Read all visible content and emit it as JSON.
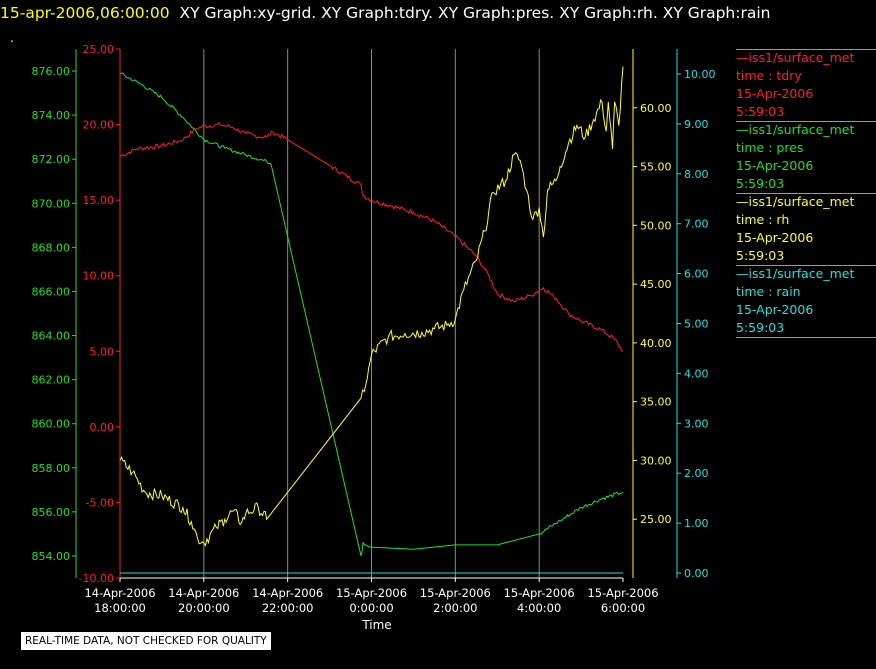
{
  "header": {
    "date": "15-apr-2006,06:00:00",
    "graphs": "XY Graph:xy-grid.  XY Graph:tdry.  XY Graph:pres.  XY Graph:rh.  XY Graph:rain"
  },
  "stray_mark": ".",
  "quality_note": "REAL-TIME DATA, NOT CHECKED FOR QUALITY",
  "legend": [
    {
      "name": "—iss1/surface_met",
      "var": "time : tdry",
      "date": "15-Apr-2006",
      "time": "5:59:03",
      "color": "#ff2020"
    },
    {
      "name": "—iss1/surface_met",
      "var": "time : pres",
      "date": "15-Apr-2006",
      "time": "5:59:03",
      "color": "#20e020"
    },
    {
      "name": "—iss1/surface_met",
      "var": "time : rh",
      "date": "15-Apr-2006",
      "time": "5:59:03",
      "color": "#ffff20"
    },
    {
      "name": "—iss1/surface_met",
      "var": "time : rain",
      "date": "15-Apr-2006",
      "time": "5:59:03",
      "color": "#20e0e0"
    }
  ],
  "chart_data": {
    "type": "line",
    "xlabel": "Time",
    "x_ticks": [
      {
        "label1": "14-Apr-2006",
        "label2": "18:00:00",
        "hour": 18
      },
      {
        "label1": "14-Apr-2006",
        "label2": "20:00:00",
        "hour": 20
      },
      {
        "label1": "14-Apr-2006",
        "label2": "22:00:00",
        "hour": 22
      },
      {
        "label1": "15-Apr-2006",
        "label2": "0:00:00",
        "hour": 24
      },
      {
        "label1": "15-Apr-2006",
        "label2": "2:00:00",
        "hour": 26
      },
      {
        "label1": "15-Apr-2006",
        "label2": "4:00:00",
        "hour": 28
      },
      {
        "label1": "15-Apr-2006",
        "label2": "6:00:00",
        "hour": 30
      }
    ],
    "x_range_hours": [
      18,
      30
    ],
    "vertical_grid": true,
    "axes": {
      "pres": {
        "color": "#20e020",
        "range": [
          853,
          877
        ],
        "ticks": [
          "854.00",
          "856.00",
          "858.00",
          "860.00",
          "862.00",
          "864.00",
          "866.00",
          "868.00",
          "870.00",
          "872.00",
          "874.00",
          "876.00"
        ]
      },
      "tdry": {
        "color": "#ff2020",
        "range": [
          -10,
          25
        ],
        "ticks": [
          "-10.00",
          "-5.00",
          "0.00",
          "5.00",
          "10.00",
          "15.00",
          "20.00",
          "25.00"
        ]
      },
      "rh": {
        "color": "#ffff20",
        "range": [
          20,
          65
        ],
        "ticks": [
          "25.00",
          "30.00",
          "35.00",
          "40.00",
          "45.00",
          "50.00",
          "55.00",
          "60.00"
        ]
      },
      "rain": {
        "color": "#20e0e0",
        "range": [
          -0.1,
          10.5
        ],
        "ticks": [
          "0.00",
          "1.00",
          "2.00",
          "3.00",
          "4.00",
          "5.00",
          "6.00",
          "7.00",
          "8.00",
          "9.00",
          "10.00"
        ]
      }
    },
    "series": [
      {
        "name": "tdry",
        "axis": "tdry",
        "color": "#ff2020",
        "noise": 0.15,
        "points": [
          [
            18.0,
            17.9
          ],
          [
            18.4,
            18.4
          ],
          [
            19.0,
            18.6
          ],
          [
            19.5,
            19.0
          ],
          [
            19.8,
            19.7
          ],
          [
            20.0,
            19.9
          ],
          [
            20.4,
            20.0
          ],
          [
            20.7,
            19.8
          ],
          [
            21.0,
            19.4
          ],
          [
            21.3,
            19.2
          ],
          [
            21.5,
            19.2
          ],
          [
            21.65,
            19.5
          ],
          [
            22.0,
            19.0
          ],
          [
            23.0,
            17.3
          ],
          [
            23.75,
            16.0
          ],
          [
            23.8,
            15.3
          ],
          [
            24.0,
            15.0
          ],
          [
            24.5,
            14.6
          ],
          [
            25.0,
            14.2
          ],
          [
            25.5,
            13.6
          ],
          [
            26.0,
            12.6
          ],
          [
            26.5,
            11.3
          ],
          [
            26.8,
            10.0
          ],
          [
            27.0,
            8.8
          ],
          [
            27.4,
            8.3
          ],
          [
            27.8,
            8.7
          ],
          [
            28.1,
            9.2
          ],
          [
            28.4,
            8.5
          ],
          [
            28.7,
            7.5
          ],
          [
            29.0,
            7.0
          ],
          [
            29.5,
            6.4
          ],
          [
            29.8,
            5.8
          ],
          [
            30.0,
            5.0
          ]
        ]
      },
      {
        "name": "pres",
        "axis": "pres",
        "color": "#20e020",
        "noise": 0.08,
        "points": [
          [
            18.0,
            875.9
          ],
          [
            18.5,
            875.4
          ],
          [
            19.0,
            874.8
          ],
          [
            19.5,
            873.9
          ],
          [
            20.0,
            872.9
          ],
          [
            20.5,
            872.5
          ],
          [
            21.0,
            872.2
          ],
          [
            21.5,
            871.9
          ],
          [
            21.6,
            871.8
          ],
          [
            23.75,
            854.0
          ],
          [
            23.8,
            854.6
          ],
          [
            24.0,
            854.4
          ],
          [
            25.0,
            854.3
          ],
          [
            26.0,
            854.5
          ],
          [
            27.0,
            854.5
          ],
          [
            28.0,
            855.0
          ],
          [
            28.5,
            855.6
          ],
          [
            29.0,
            856.2
          ],
          [
            29.5,
            856.6
          ],
          [
            30.0,
            856.9
          ]
        ]
      },
      {
        "name": "rh",
        "axis": "rh",
        "color": "#ffff20",
        "noise": 0.5,
        "points": [
          [
            18.0,
            30.0
          ],
          [
            18.3,
            29.0
          ],
          [
            18.6,
            27.3
          ],
          [
            19.0,
            27.0
          ],
          [
            19.5,
            26.0
          ],
          [
            19.7,
            24.8
          ],
          [
            19.85,
            23.4
          ],
          [
            20.0,
            23.0
          ],
          [
            20.3,
            24.3
          ],
          [
            20.5,
            25.0
          ],
          [
            20.7,
            25.7
          ],
          [
            20.9,
            24.7
          ],
          [
            21.0,
            25.5
          ],
          [
            21.3,
            26.0
          ],
          [
            21.5,
            25.0
          ],
          [
            23.75,
            35.3
          ],
          [
            23.9,
            37.0
          ],
          [
            24.0,
            39.0
          ],
          [
            24.4,
            40.5
          ],
          [
            24.8,
            40.8
          ],
          [
            25.2,
            40.9
          ],
          [
            25.5,
            41.2
          ],
          [
            25.8,
            41.5
          ],
          [
            26.0,
            42.0
          ],
          [
            26.2,
            44.5
          ],
          [
            26.5,
            47.0
          ],
          [
            26.7,
            49.5
          ],
          [
            26.9,
            52.8
          ],
          [
            27.2,
            53.8
          ],
          [
            27.4,
            56.0
          ],
          [
            27.55,
            55.5
          ],
          [
            27.7,
            53.0
          ],
          [
            27.85,
            50.5
          ],
          [
            28.0,
            51.5
          ],
          [
            28.1,
            49.0
          ],
          [
            28.2,
            53.0
          ],
          [
            28.4,
            53.8
          ],
          [
            28.5,
            55.0
          ],
          [
            28.7,
            57.0
          ],
          [
            28.9,
            58.5
          ],
          [
            29.1,
            57.5
          ],
          [
            29.3,
            59.0
          ],
          [
            29.5,
            60.5
          ],
          [
            29.6,
            58.0
          ],
          [
            29.65,
            60.5
          ],
          [
            29.75,
            56.5
          ],
          [
            29.8,
            60.5
          ],
          [
            29.9,
            58.5
          ],
          [
            30.0,
            63.5
          ]
        ]
      },
      {
        "name": "rain",
        "axis": "rain",
        "color": "#20e0e0",
        "noise": 0,
        "points": [
          [
            18.0,
            0.0
          ],
          [
            30.0,
            0.0
          ]
        ]
      }
    ]
  }
}
